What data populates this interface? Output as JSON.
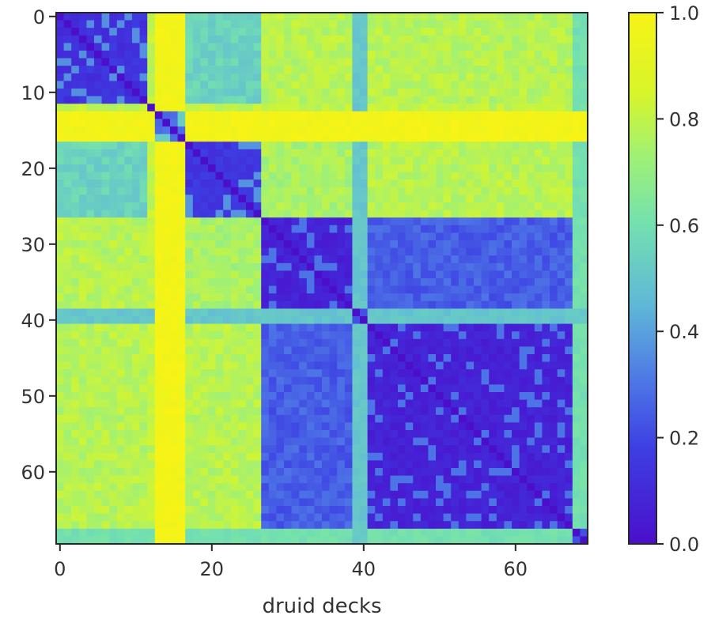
{
  "chart_data": {
    "type": "heatmap",
    "title": "",
    "xlabel": "druid decks",
    "ylabel": "",
    "n": 70,
    "xlim": [
      -0.5,
      69.5
    ],
    "ylim": [
      69.5,
      -0.5
    ],
    "x_ticks": [
      0,
      20,
      40,
      60
    ],
    "y_ticks": [
      0,
      10,
      20,
      30,
      40,
      50,
      60
    ],
    "x_tick_labels": [
      "0",
      "20",
      "40",
      "60"
    ],
    "y_tick_labels": [
      "0",
      "10",
      "20",
      "30",
      "40",
      "50",
      "60"
    ],
    "colorbar": {
      "min": 0.0,
      "max": 1.0,
      "ticks": [
        0.0,
        0.2,
        0.4,
        0.6,
        0.8,
        1.0
      ],
      "tick_labels": [
        "0.0",
        "0.2",
        "0.4",
        "0.6",
        "0.8",
        "1.0"
      ]
    },
    "colormap": "viridis-like",
    "color_stops": [
      {
        "v": 0.0,
        "color": "#4b0fcc"
      },
      {
        "v": 0.18,
        "color": "#3d3fe3"
      },
      {
        "v": 0.3,
        "color": "#4d74e6"
      },
      {
        "v": 0.45,
        "color": "#5fb8d8"
      },
      {
        "v": 0.6,
        "color": "#73e0b0"
      },
      {
        "v": 0.72,
        "color": "#9cf07a"
      },
      {
        "v": 0.85,
        "color": "#d8f52a"
      },
      {
        "v": 1.0,
        "color": "#f7f316"
      }
    ],
    "clusters": [
      {
        "range": [
          0,
          11
        ],
        "within": 0.14
      },
      {
        "range": [
          12,
          12
        ],
        "within": 0.0
      },
      {
        "range": [
          13,
          16
        ],
        "within": 0.3
      },
      {
        "range": [
          17,
          26
        ],
        "within": 0.15
      },
      {
        "range": [
          27,
          38
        ],
        "within": 0.08
      },
      {
        "range": [
          39,
          40
        ],
        "within": 0.0
      },
      {
        "range": [
          41,
          67
        ],
        "within": 0.08
      },
      {
        "range": [
          68,
          69
        ],
        "within": 0.0
      }
    ],
    "between_cluster_values": [
      {
        "a": [
          0,
          11
        ],
        "b": [
          17,
          26
        ],
        "value": 0.55
      },
      {
        "a": [
          0,
          11
        ],
        "b": [
          27,
          38
        ],
        "value": 0.78
      },
      {
        "a": [
          0,
          11
        ],
        "b": [
          41,
          67
        ],
        "value": 0.78
      },
      {
        "a": [
          17,
          26
        ],
        "b": [
          27,
          38
        ],
        "value": 0.75
      },
      {
        "a": [
          17,
          26
        ],
        "b": [
          41,
          67
        ],
        "value": 0.78
      },
      {
        "a": [
          27,
          38
        ],
        "b": [
          41,
          67
        ],
        "value": 0.25
      },
      {
        "a": [
          13,
          16
        ],
        "b": [
          0,
          69
        ],
        "value": 0.98
      },
      {
        "a": [
          39,
          40
        ],
        "b": [
          0,
          69
        ],
        "value": 0.5
      },
      {
        "a": [
          68,
          69
        ],
        "b": [
          0,
          69
        ],
        "value": 0.6
      }
    ]
  }
}
